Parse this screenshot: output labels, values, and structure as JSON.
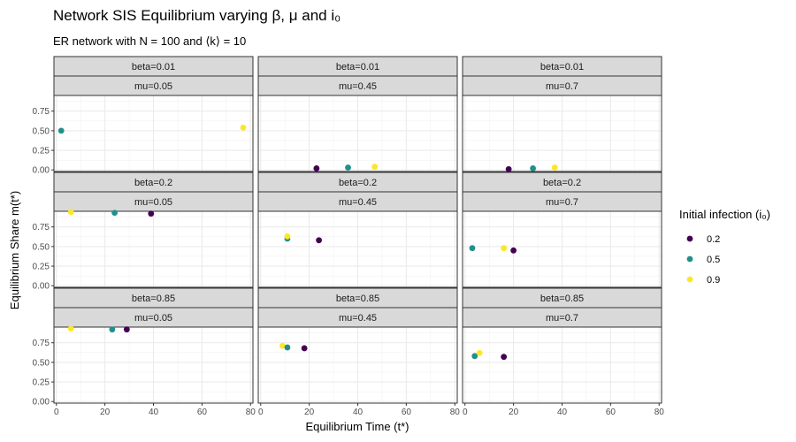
{
  "chart_data": {
    "type": "scatter",
    "title": "Network SIS Equilibrium varying β, μ and i₀",
    "subtitle": "ER network with N = 100 and ⟨k⟩ = 10",
    "xlabel": "Equilibrium Time (t*)",
    "ylabel": "Equilibrium Share m(t*)",
    "xlim": [
      -1,
      81
    ],
    "ylim": [
      -0.02,
      0.95
    ],
    "x_ticks": [
      0,
      20,
      40,
      60,
      80
    ],
    "y_ticks": [
      0.0,
      0.25,
      0.5,
      0.75
    ],
    "y_tick_labels": [
      "0.00",
      "0.25",
      "0.50",
      "0.75"
    ],
    "grid": true,
    "legend": {
      "title": "Initial infection (i₀)",
      "placement": "right",
      "entries": [
        {
          "label": "0.2",
          "color": "#440154"
        },
        {
          "label": "0.5",
          "color": "#21908C"
        },
        {
          "label": "0.9",
          "color": "#FDE725"
        }
      ]
    },
    "panels": [
      {
        "row_label": "beta=0.01",
        "col_label": "mu=0.05",
        "points": [
          {
            "i0": "0.5",
            "x": 2,
            "y": 0.5
          },
          {
            "i0": "0.9",
            "x": 77,
            "y": 0.54
          }
        ]
      },
      {
        "row_label": "beta=0.01",
        "col_label": "mu=0.45",
        "points": [
          {
            "i0": "0.2",
            "x": 23,
            "y": 0.02
          },
          {
            "i0": "0.5",
            "x": 36,
            "y": 0.03
          },
          {
            "i0": "0.9",
            "x": 47,
            "y": 0.04
          }
        ]
      },
      {
        "row_label": "beta=0.01",
        "col_label": "mu=0.7",
        "points": [
          {
            "i0": "0.2",
            "x": 18,
            "y": 0.01
          },
          {
            "i0": "0.5",
            "x": 28,
            "y": 0.02
          },
          {
            "i0": "0.9",
            "x": 37,
            "y": 0.03
          }
        ]
      },
      {
        "row_label": "beta=0.2",
        "col_label": "mu=0.05",
        "points": [
          {
            "i0": "0.9",
            "x": 6,
            "y": 0.94
          },
          {
            "i0": "0.5",
            "x": 24,
            "y": 0.93
          },
          {
            "i0": "0.2",
            "x": 39,
            "y": 0.92
          }
        ]
      },
      {
        "row_label": "beta=0.2",
        "col_label": "mu=0.45",
        "points": [
          {
            "i0": "0.5",
            "x": 11,
            "y": 0.6
          },
          {
            "i0": "0.9",
            "x": 11,
            "y": 0.63
          },
          {
            "i0": "0.2",
            "x": 24,
            "y": 0.58
          }
        ]
      },
      {
        "row_label": "beta=0.2",
        "col_label": "mu=0.7",
        "points": [
          {
            "i0": "0.5",
            "x": 3,
            "y": 0.48
          },
          {
            "i0": "0.9",
            "x": 16,
            "y": 0.48
          },
          {
            "i0": "0.2",
            "x": 20,
            "y": 0.45
          }
        ]
      },
      {
        "row_label": "beta=0.85",
        "col_label": "mu=0.05",
        "points": [
          {
            "i0": "0.9",
            "x": 6,
            "y": 0.93
          },
          {
            "i0": "0.5",
            "x": 23,
            "y": 0.92
          },
          {
            "i0": "0.2",
            "x": 29,
            "y": 0.92
          }
        ]
      },
      {
        "row_label": "beta=0.85",
        "col_label": "mu=0.45",
        "points": [
          {
            "i0": "0.9",
            "x": 9,
            "y": 0.71
          },
          {
            "i0": "0.5",
            "x": 11,
            "y": 0.69
          },
          {
            "i0": "0.2",
            "x": 18,
            "y": 0.68
          }
        ]
      },
      {
        "row_label": "beta=0.85",
        "col_label": "mu=0.7",
        "points": [
          {
            "i0": "0.5",
            "x": 4,
            "y": 0.58
          },
          {
            "i0": "0.9",
            "x": 6,
            "y": 0.62
          },
          {
            "i0": "0.2",
            "x": 16,
            "y": 0.57
          }
        ]
      }
    ]
  }
}
